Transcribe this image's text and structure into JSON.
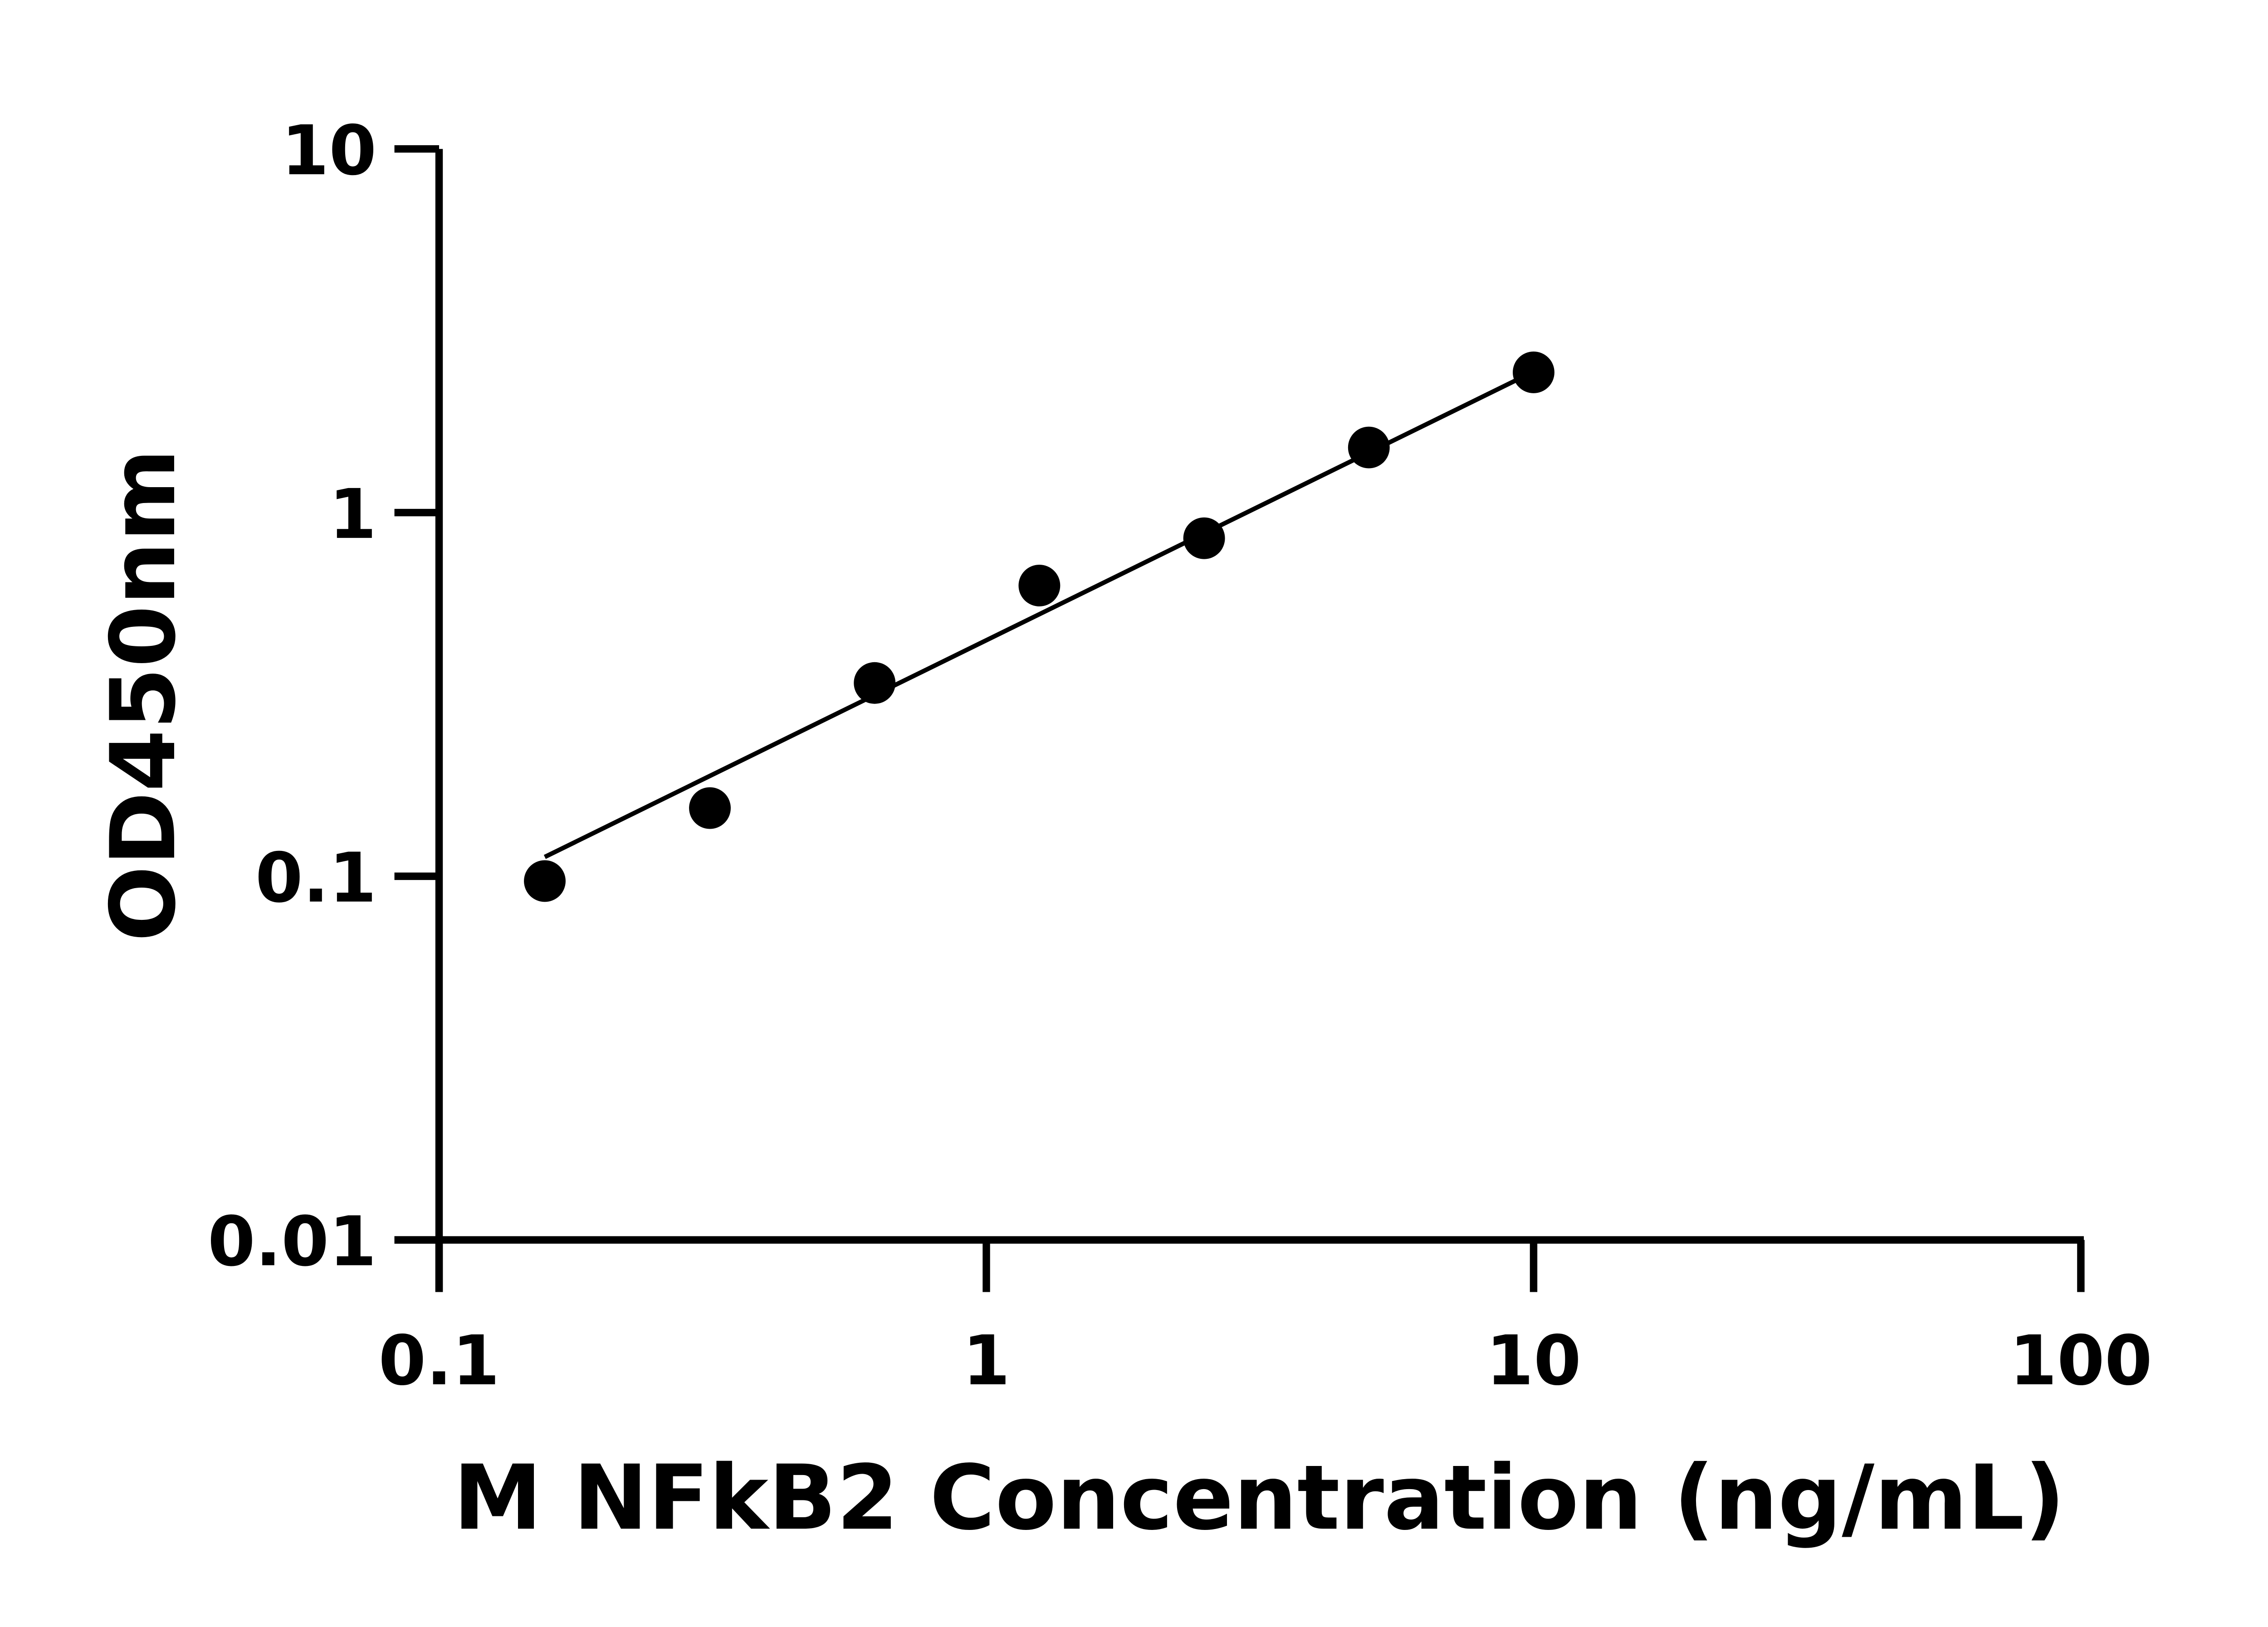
{
  "chart_data": {
    "type": "scatter",
    "title": "",
    "xlabel": "M NFkB2 Concentration (ng/mL)",
    "ylabel": "OD450nm",
    "x_scale": "log",
    "y_scale": "log",
    "xlim": [
      0.1,
      100
    ],
    "ylim": [
      0.01,
      10
    ],
    "x_ticks": [
      "0.1",
      "1",
      "10",
      "100"
    ],
    "y_ticks": [
      "0.01",
      "0.1",
      "1",
      "10"
    ],
    "grid": false,
    "marker_color": "#000000",
    "points": [
      {
        "x": 0.156,
        "y": 0.097
      },
      {
        "x": 0.3125,
        "y": 0.154
      },
      {
        "x": 0.625,
        "y": 0.34
      },
      {
        "x": 1.25,
        "y": 0.63
      },
      {
        "x": 2.5,
        "y": 0.85
      },
      {
        "x": 5,
        "y": 1.51
      },
      {
        "x": 10,
        "y": 2.43
      }
    ],
    "fit_line": [
      {
        "x": 0.156,
        "y": 0.113
      },
      {
        "x": 9.5,
        "y": 2.35
      }
    ]
  }
}
